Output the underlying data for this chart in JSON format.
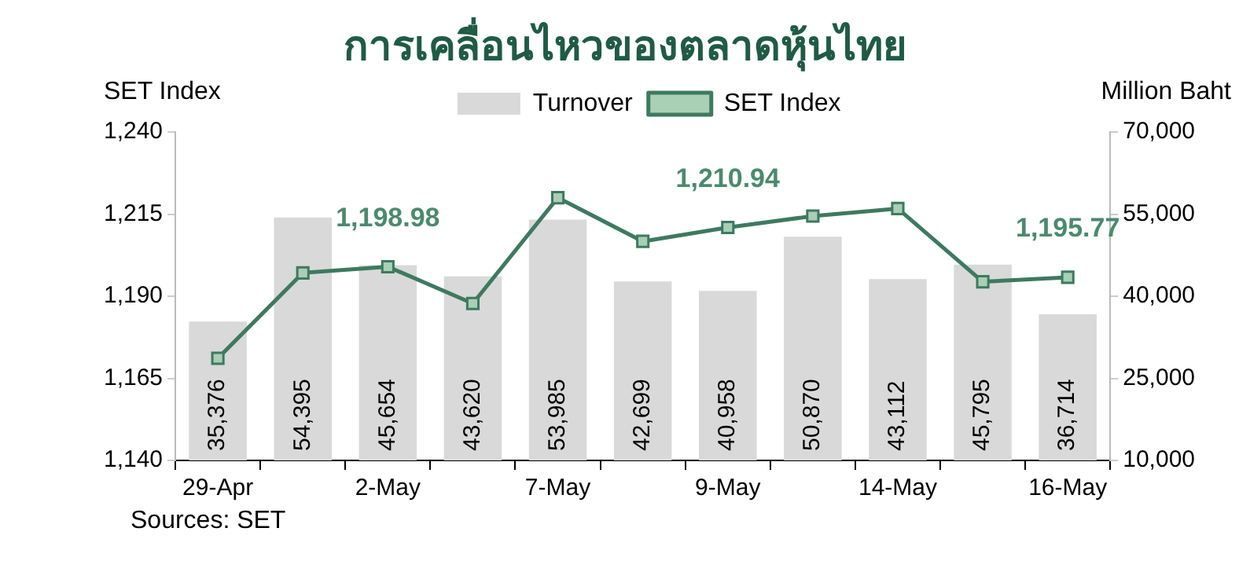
{
  "chart_data": {
    "type": "bar",
    "title": "การเคลื่อนไหวของตลาดหุ้นไทย",
    "ylabel": "SET Index",
    "y2label": "Million Baht",
    "categories": [
      "29-Apr",
      null,
      "2-May",
      null,
      "7-May",
      null,
      "9-May",
      null,
      "14-May",
      null,
      "16-May"
    ],
    "series": [
      {
        "name": "Turnover",
        "axis": "y2",
        "color": "#d9d9d9",
        "values": [
          35376,
          54395,
          45654,
          43620,
          53985,
          42699,
          40958,
          50870,
          43112,
          45795,
          36714
        ],
        "value_labels": [
          "35,376",
          "54,395",
          "45,654",
          "43,620",
          "53,985",
          "42,699",
          "40,958",
          "50,870",
          "43,112",
          "45,795",
          "36,714"
        ]
      },
      {
        "name": "SET Index",
        "type": "line",
        "axis": "y",
        "color": "#3d7a60",
        "values": [
          1171.1,
          1197.1,
          1198.98,
          1187.8,
          1220.0,
          1206.7,
          1210.94,
          1214.4,
          1216.7,
          1194.4,
          1195.77
        ]
      }
    ],
    "ylim": [
      1140,
      1240
    ],
    "yticks": [
      {
        "value": 1140,
        "label": "1,140"
      },
      {
        "value": 1165,
        "label": "1,165"
      },
      {
        "value": 1190,
        "label": "1,190"
      },
      {
        "value": 1215,
        "label": "1,215"
      },
      {
        "value": 1240,
        "label": "1,240"
      }
    ],
    "y2lim": [
      10000,
      70000
    ],
    "y2ticks": [
      {
        "value": 10000,
        "label": "10,000"
      },
      {
        "value": 25000,
        "label": "25,000"
      },
      {
        "value": 40000,
        "label": "40,000"
      },
      {
        "value": 55000,
        "label": "55,000"
      },
      {
        "value": 70000,
        "label": "70,000"
      }
    ],
    "marker": "square",
    "legend": "top",
    "grid": false,
    "annotations": [
      {
        "text": "1,198.98",
        "x": "2-May",
        "y": 1198.98
      },
      {
        "text": "1,210.94",
        "x": "9-May",
        "y": 1210.94
      },
      {
        "text": "1,195.77",
        "x": "16-May",
        "y": 1195.77
      },
      "Sources: SET"
    ]
  }
}
